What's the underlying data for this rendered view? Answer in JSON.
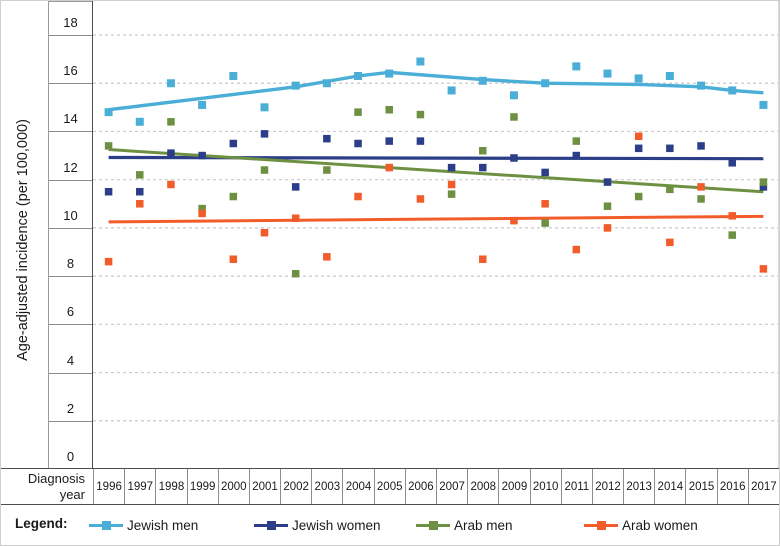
{
  "figure": {
    "y_axis_title": "Age-adjusted incidence (per 100,000)",
    "x_axis_title_line1": "Diagnosis",
    "x_axis_title_line2": "year",
    "legend_title": "Legend:"
  },
  "colors": {
    "jewish_men": "#4BAED7",
    "jewish_women": "#2B3E87",
    "arab_men": "#6E9042",
    "arab_women": "#F25C2B",
    "gridline": "#C9C9C9",
    "axis_border": "#8C8C8C",
    "text": "#1A1A1A"
  },
  "legend": {
    "items": [
      {
        "label": "Jewish men",
        "color": "#4BAED7",
        "x": 88
      },
      {
        "label": "Jewish women",
        "color": "#2B3E87",
        "x": 253
      },
      {
        "label": "Arab men",
        "color": "#6E9042",
        "x": 415
      },
      {
        "label": "Arab women",
        "color": "#F25C2B",
        "x": 583
      }
    ]
  },
  "chart_data": {
    "type": "scatter",
    "title": "",
    "xlabel": "Diagnosis year",
    "ylabel": "Age-adjusted incidence (per 100,000)",
    "x": [
      1996,
      1997,
      1998,
      1999,
      2000,
      2001,
      2002,
      2003,
      2004,
      2005,
      2006,
      2007,
      2008,
      2009,
      2010,
      2011,
      2012,
      2013,
      2014,
      2015,
      2016,
      2017
    ],
    "yticks": [
      18,
      16,
      14,
      12,
      10,
      8,
      6,
      4,
      2,
      0
    ],
    "ylim": [
      0,
      19.4
    ],
    "grid": "horizontal dashed at ticks 2-18",
    "legend_position": "bottom",
    "series": [
      {
        "name": "Jewish men",
        "color": "#4BAED7",
        "size": 8,
        "values": [
          14.8,
          14.4,
          16.0,
          15.1,
          16.3,
          15.0,
          15.9,
          16.0,
          16.3,
          16.4,
          16.9,
          15.7,
          16.1,
          15.5,
          16.0,
          16.7,
          16.4,
          16.2,
          16.3,
          15.9,
          15.7,
          15.1
        ]
      },
      {
        "name": "Jewish women",
        "color": "#2B3E87",
        "size": 7.5,
        "values": [
          11.5,
          11.5,
          13.1,
          13.0,
          13.5,
          13.9,
          11.7,
          13.7,
          13.5,
          13.6,
          13.6,
          12.5,
          12.5,
          12.9,
          12.3,
          13.0,
          11.9,
          13.3,
          13.3,
          13.4,
          12.7,
          11.7
        ]
      },
      {
        "name": "Arab men",
        "color": "#6E9042",
        "size": 7.5,
        "values": [
          13.4,
          12.2,
          14.4,
          10.8,
          11.3,
          12.4,
          8.1,
          12.4,
          14.8,
          14.9,
          14.7,
          11.4,
          13.2,
          14.6,
          10.2,
          13.6,
          10.9,
          11.3,
          11.6,
          11.2,
          9.7,
          11.9
        ]
      },
      {
        "name": "Arab women",
        "color": "#F25C2B",
        "size": 7.5,
        "values": [
          8.6,
          11.0,
          11.8,
          10.6,
          8.7,
          9.8,
          10.4,
          8.8,
          11.3,
          12.5,
          11.2,
          11.8,
          8.7,
          10.3,
          11.0,
          9.1,
          10.0,
          13.8,
          9.4,
          11.7,
          10.5,
          8.3
        ]
      }
    ],
    "trend_lines": [
      {
        "name": "Jewish men trend",
        "color": "#4BAED7",
        "width": 3.4,
        "points": [
          [
            1996,
            14.9
          ],
          [
            2002,
            15.85
          ],
          [
            2004,
            16.3
          ],
          [
            2005,
            16.45
          ],
          [
            2008,
            16.15
          ],
          [
            2010,
            16.0
          ],
          [
            2013,
            15.95
          ],
          [
            2015,
            15.85
          ],
          [
            2016,
            15.7
          ],
          [
            2017,
            15.6
          ]
        ]
      },
      {
        "name": "Jewish women trend",
        "color": "#2B3E87",
        "width": 3.2,
        "points": [
          [
            1996,
            12.92
          ],
          [
            2017,
            12.87
          ]
        ]
      },
      {
        "name": "Arab men trend",
        "color": "#6E9042",
        "width": 3.0,
        "points": [
          [
            1996,
            13.25
          ],
          [
            2017,
            11.5
          ]
        ]
      },
      {
        "name": "Arab women trend",
        "color": "#F25C2B",
        "width": 3.0,
        "points": [
          [
            1996,
            10.25
          ],
          [
            2017,
            10.48
          ]
        ]
      }
    ]
  }
}
